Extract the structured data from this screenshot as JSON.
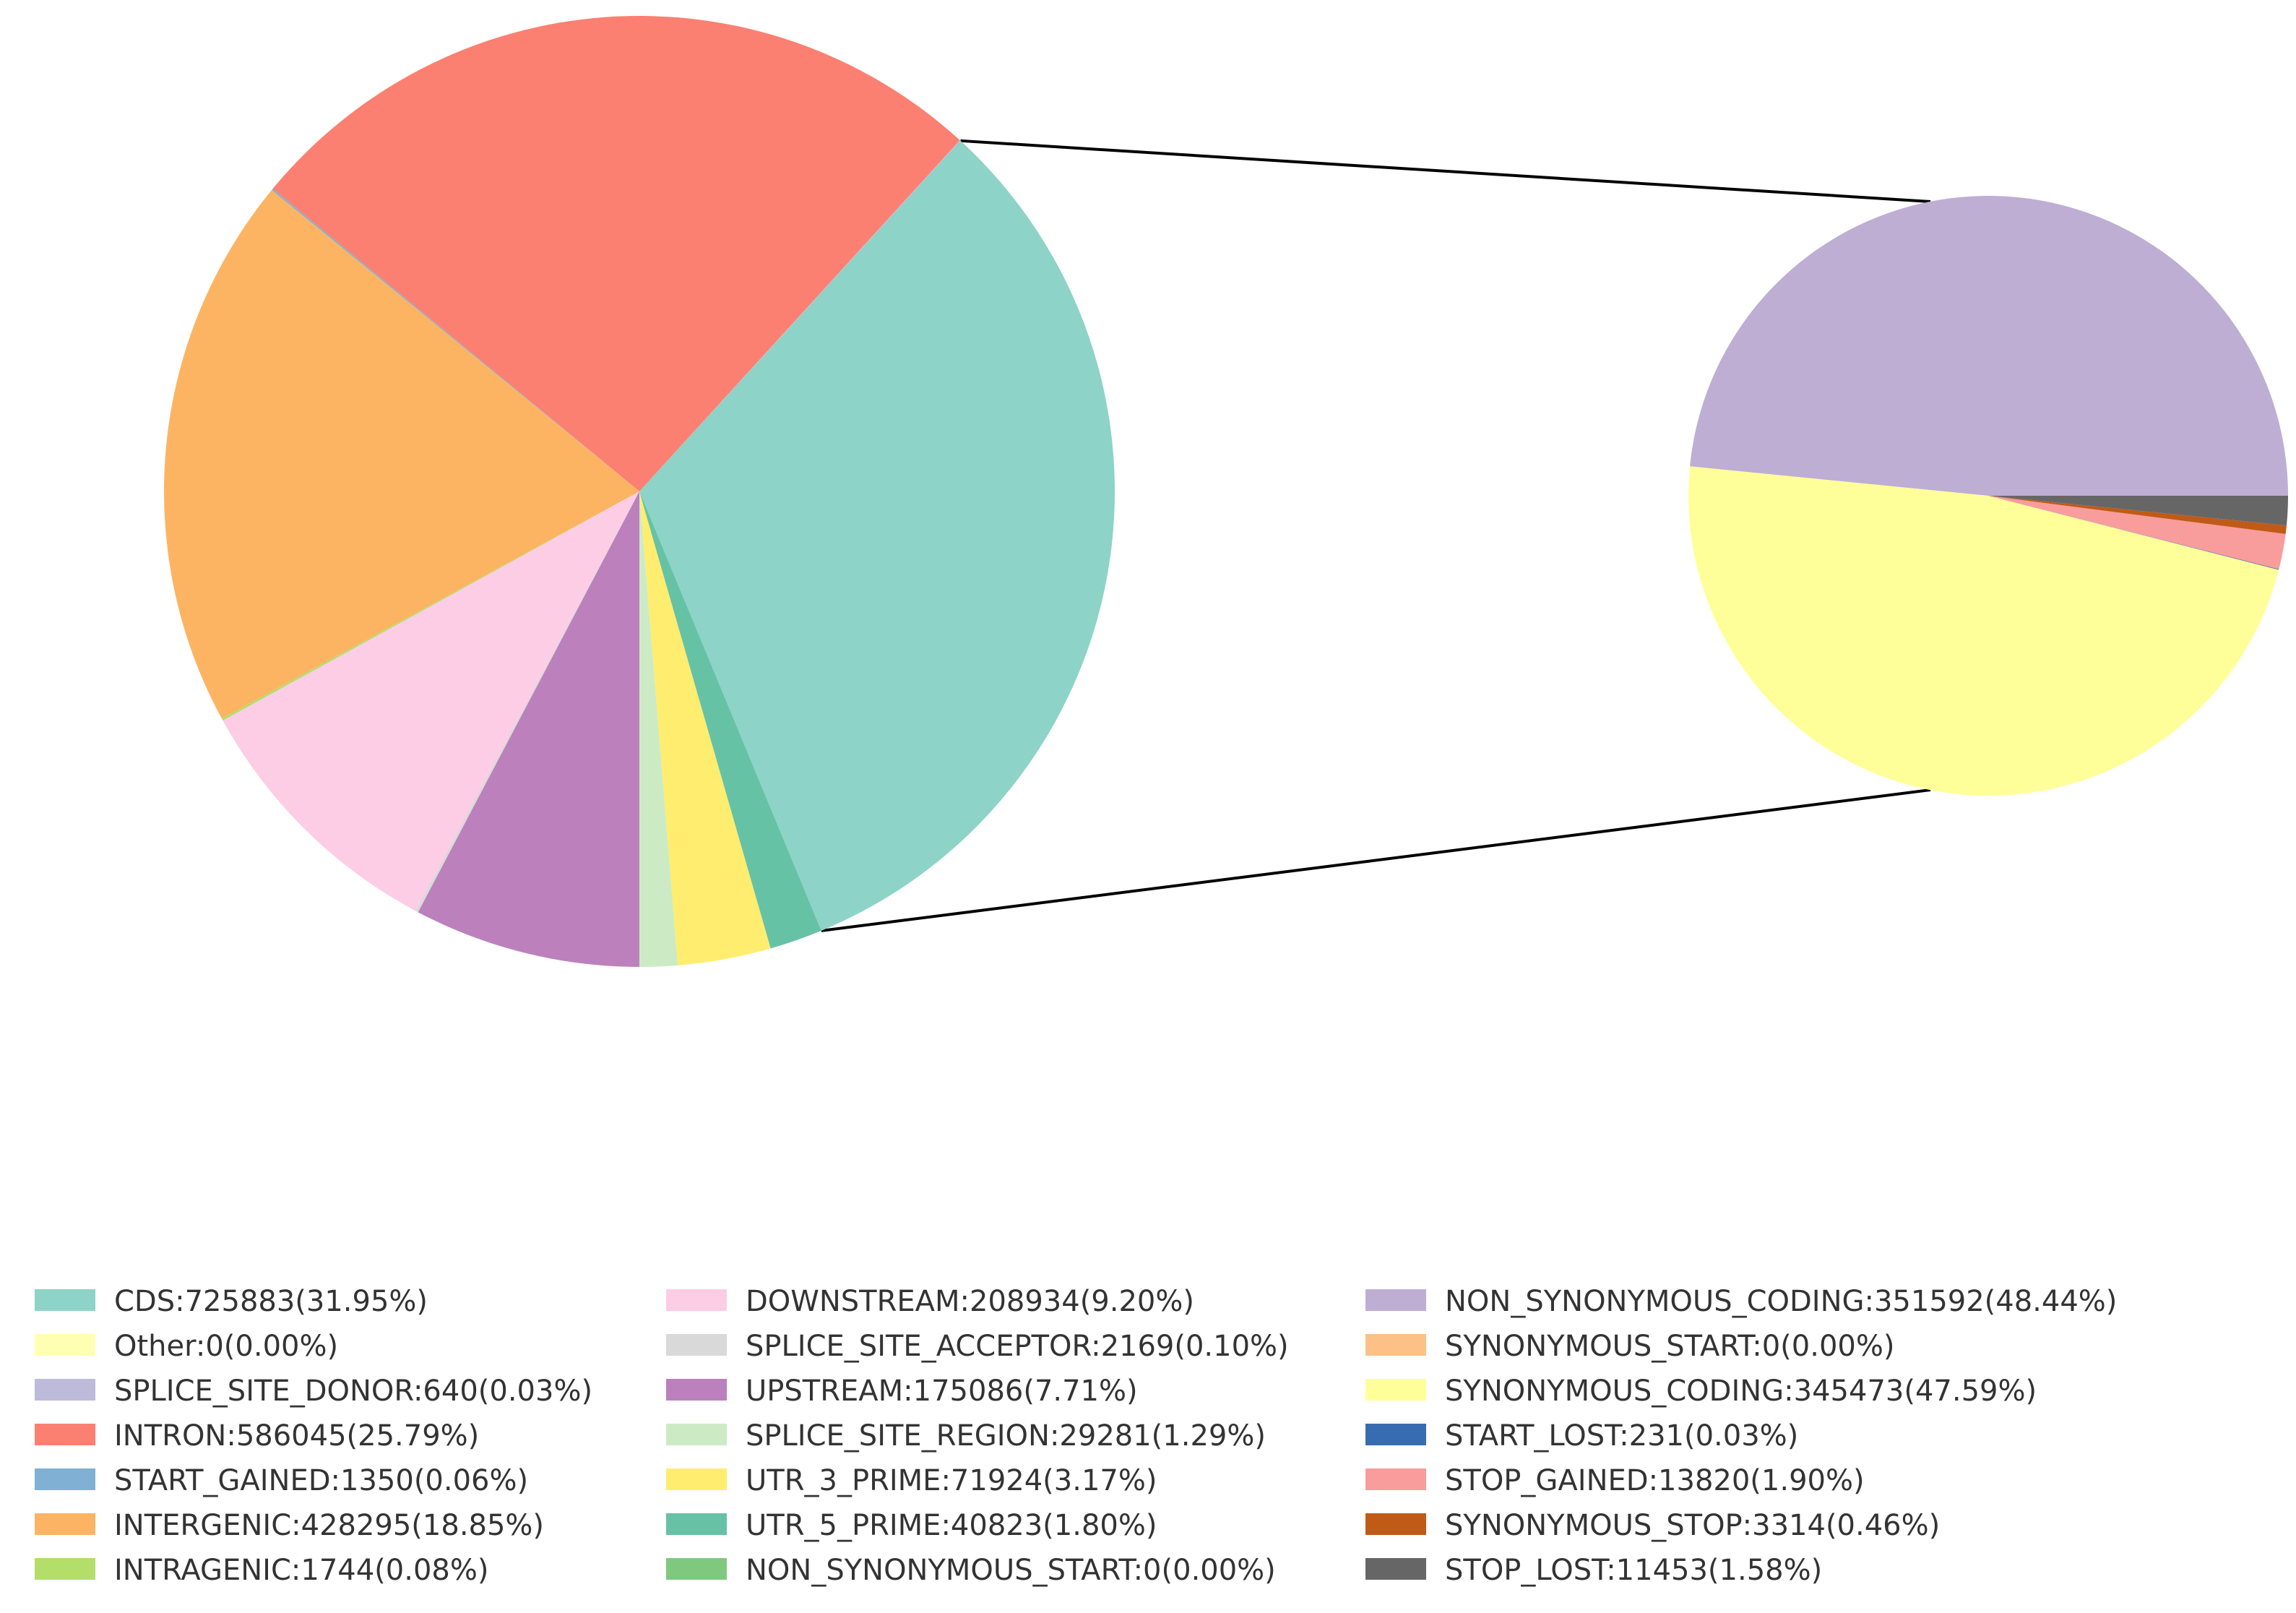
{
  "chart_data": [
    {
      "type": "pie",
      "name": "main",
      "title": "",
      "series": [
        {
          "label": "CDS",
          "value": 725883,
          "percent": "31.95%",
          "color": "#8dd3c7"
        },
        {
          "label": "Other",
          "value": 0,
          "percent": "0.00%",
          "color": "#ffffb3"
        },
        {
          "label": "SPLICE_SITE_DONOR",
          "value": 640,
          "percent": "0.03%",
          "color": "#bebada"
        },
        {
          "label": "INTRON",
          "value": 586045,
          "percent": "25.79%",
          "color": "#fb8072"
        },
        {
          "label": "START_GAINED",
          "value": 1350,
          "percent": "0.06%",
          "color": "#80b1d3"
        },
        {
          "label": "INTERGENIC",
          "value": 428295,
          "percent": "18.85%",
          "color": "#fdb462"
        },
        {
          "label": "INTRAGENIC",
          "value": 1744,
          "percent": "0.08%",
          "color": "#b3de69"
        },
        {
          "label": "DOWNSTREAM",
          "value": 208934,
          "percent": "9.20%",
          "color": "#fccde5"
        },
        {
          "label": "SPLICE_SITE_ACCEPTOR",
          "value": 2169,
          "percent": "0.10%",
          "color": "#d9d9d9"
        },
        {
          "label": "UPSTREAM",
          "value": 175086,
          "percent": "7.71%",
          "color": "#bc80bd"
        },
        {
          "label": "SPLICE_SITE_REGION",
          "value": 29281,
          "percent": "1.29%",
          "color": "#ccebc5"
        },
        {
          "label": "UTR_3_PRIME",
          "value": 71924,
          "percent": "3.17%",
          "color": "#ffed6f"
        },
        {
          "label": "UTR_5_PRIME",
          "value": 40823,
          "percent": "1.80%",
          "color": "#66c2a5"
        },
        {
          "label": "NON_SYNONYMOUS_START",
          "value": 0,
          "percent": "0.00%",
          "color": "#7fc97f"
        }
      ]
    },
    {
      "type": "pie",
      "name": "cds-breakdown",
      "title": "",
      "series": [
        {
          "label": "NON_SYNONYMOUS_CODING",
          "value": 351592,
          "percent": "48.44%",
          "color": "#beaed4"
        },
        {
          "label": "SYNONYMOUS_START",
          "value": 0,
          "percent": "0.00%",
          "color": "#fdc086"
        },
        {
          "label": "SYNONYMOUS_CODING",
          "value": 345473,
          "percent": "47.59%",
          "color": "#ffff99"
        },
        {
          "label": "START_LOST",
          "value": 231,
          "percent": "0.03%",
          "color": "#386cb0"
        },
        {
          "label": "STOP_GAINED",
          "value": 13820,
          "percent": "1.90%",
          "color": "#f89c9c"
        },
        {
          "label": "SYNONYMOUS_STOP",
          "value": 3314,
          "percent": "0.46%",
          "color": "#bf5b17"
        },
        {
          "label": "STOP_LOST",
          "value": 11453,
          "percent": "1.58%",
          "color": "#666666"
        }
      ]
    }
  ],
  "legend": {
    "placement": "bottom",
    "columns": [
      [
        "CDS:725883(31.95%)",
        "Other:0(0.00%)",
        "SPLICE_SITE_DONOR:640(0.03%)",
        "INTRON:586045(25.79%)",
        "START_GAINED:1350(0.06%)",
        "INTERGENIC:428295(18.85%)",
        "INTRAGENIC:1744(0.08%)"
      ],
      [
        "DOWNSTREAM:208934(9.20%)",
        "SPLICE_SITE_ACCEPTOR:2169(0.10%)",
        "UPSTREAM:175086(7.71%)",
        "SPLICE_SITE_REGION:29281(1.29%)",
        "UTR_3_PRIME:71924(3.17%)",
        "UTR_5_PRIME:40823(1.80%)",
        "NON_SYNONYMOUS_START:0(0.00%)"
      ],
      [
        "NON_SYNONYMOUS_CODING:351592(48.44%)",
        "SYNONYMOUS_START:0(0.00%)",
        "SYNONYMOUS_CODING:345473(47.59%)",
        "START_LOST:231(0.03%)",
        "STOP_GAINED:13820(1.90%)",
        "SYNONYMOUS_STOP:3314(0.46%)",
        "STOP_LOST:11453(1.58%)"
      ]
    ]
  }
}
